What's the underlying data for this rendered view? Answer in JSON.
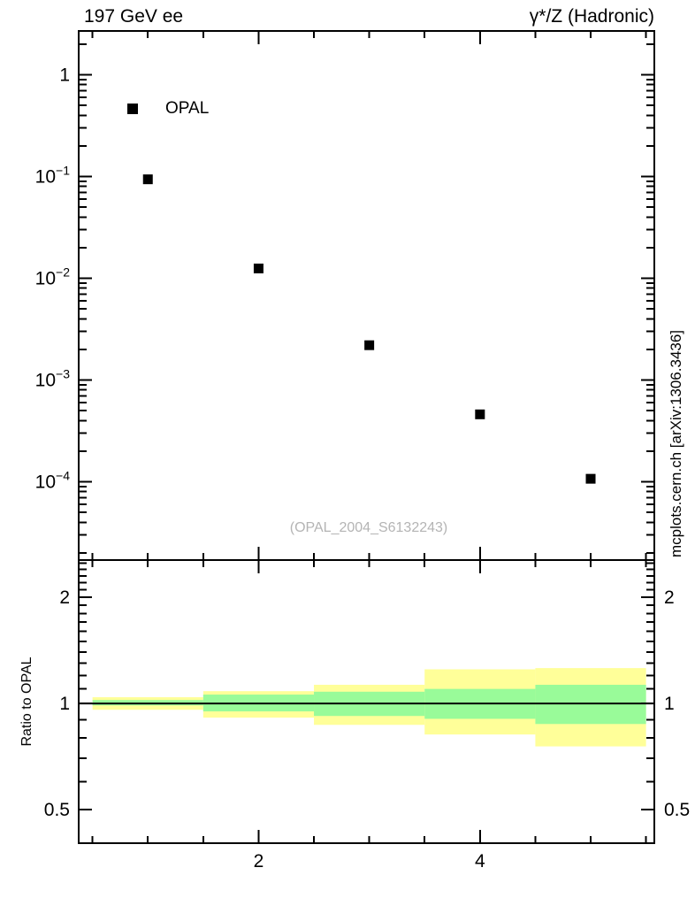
{
  "titles": {
    "left": "197 GeV ee",
    "right": "γ*/Z (Hadronic)"
  },
  "legend": {
    "label": "OPAL",
    "marker": "filled-square",
    "marker_color": "#000000"
  },
  "watermark": "(OPAL_2004_S6132243)",
  "credit": "mcplots.cern.ch [arXiv:1306.3436]",
  "colors": {
    "outer_band": "#ffff99",
    "inner_band": "#99fb99",
    "marker": "#000000",
    "frame": "#000000",
    "watermark_text": "#b4b4b4",
    "credit_text": "#999999"
  },
  "chart_data": [
    {
      "type": "scatter",
      "panel": "main",
      "title": "197 GeV ee",
      "title_right": "γ*/Z (Hadronic)",
      "xlabel": "",
      "ylabel": "",
      "xscale": "linear",
      "yscale": "log",
      "xlim": [
        0.375,
        5.575
      ],
      "ylim": [
        1.7e-05,
        2.7
      ],
      "grid": false,
      "legend_position": "top-left-inside",
      "series": [
        {
          "name": "OPAL",
          "marker": "filled-square",
          "color": "#000000",
          "x": [
            1,
            2,
            3,
            4,
            5
          ],
          "y": [
            0.094,
            0.0125,
            0.0022,
            0.00046,
            0.000107
          ]
        }
      ],
      "xticks_minor": [
        0.5,
        1,
        1.5,
        2.5,
        3,
        3.5,
        4.5,
        5,
        5.5
      ],
      "xticks_major": [
        2,
        4
      ],
      "ytick_labels": [
        {
          "v": 1,
          "base": "1",
          "exp": ""
        },
        {
          "v": 0.1,
          "base": "10",
          "exp": "−1"
        },
        {
          "v": 0.01,
          "base": "10",
          "exp": "−2"
        },
        {
          "v": 0.001,
          "base": "10",
          "exp": "−3"
        },
        {
          "v": 0.0001,
          "base": "10",
          "exp": "−4"
        }
      ]
    },
    {
      "type": "band",
      "panel": "ratio",
      "ylabel": "Ratio to OPAL",
      "xscale": "linear",
      "yscale": "log",
      "xlim": [
        0.375,
        5.575
      ],
      "ylim": [
        0.402,
        2.55
      ],
      "reference_line": 1.0,
      "bin_edges": [
        0.5,
        1.5,
        2.5,
        3.5,
        4.5,
        5.5
      ],
      "outer_band": {
        "color": "#ffff99",
        "lo": [
          0.96,
          0.912,
          0.87,
          0.817,
          0.756
        ],
        "hi": [
          1.042,
          1.084,
          1.13,
          1.25,
          1.26
        ]
      },
      "inner_band": {
        "color": "#99fb99",
        "lo": [
          0.988,
          0.95,
          0.922,
          0.905,
          0.875
        ],
        "hi": [
          1.023,
          1.06,
          1.08,
          1.1,
          1.13
        ]
      },
      "yticks_minor": [
        0.6,
        0.7,
        0.8,
        0.9,
        1.1,
        1.2,
        1.3,
        1.4,
        1.5,
        1.6,
        1.7,
        1.8,
        1.9,
        2.1,
        2.2,
        2.3,
        2.4,
        2.5
      ],
      "ytick_labels": [
        {
          "v": 0.5,
          "label": "0.5"
        },
        {
          "v": 1,
          "label": "1"
        },
        {
          "v": 2,
          "label": "2"
        }
      ],
      "xticks_minor": [
        0.5,
        1,
        1.5,
        2.5,
        3,
        3.5,
        4.5,
        5,
        5.5
      ],
      "xticks_major": [
        2,
        4
      ],
      "xtick_labels": [
        {
          "v": 2,
          "label": "2"
        },
        {
          "v": 4,
          "label": "4"
        }
      ]
    }
  ]
}
